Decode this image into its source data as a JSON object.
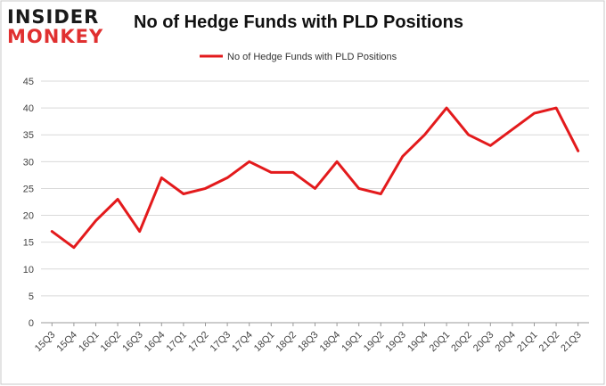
{
  "logo": {
    "line1": "INSIDER",
    "line2": "MONKEY"
  },
  "chart_data": {
    "type": "line",
    "title": "No of Hedge Funds with PLD Positions",
    "xlabel": "",
    "ylabel": "",
    "categories": [
      "15Q3",
      "15Q4",
      "16Q1",
      "16Q2",
      "16Q3",
      "16Q4",
      "17Q1",
      "17Q2",
      "17Q3",
      "17Q4",
      "18Q1",
      "18Q2",
      "18Q3",
      "18Q4",
      "19Q1",
      "19Q2",
      "19Q3",
      "19Q4",
      "20Q1",
      "20Q2",
      "20Q3",
      "20Q4",
      "21Q1",
      "21Q2",
      "21Q3"
    ],
    "series": [
      {
        "name": "No of Hedge Funds with PLD Positions",
        "color": "#e31a1c",
        "values": [
          17,
          14,
          19,
          23,
          17,
          27,
          24,
          25,
          27,
          30,
          28,
          28,
          25,
          30,
          25,
          24,
          31,
          35,
          40,
          35,
          33,
          36,
          39,
          40,
          32
        ]
      }
    ],
    "ylim": [
      0,
      45
    ],
    "yticks": [
      0,
      5,
      10,
      15,
      20,
      25,
      30,
      35,
      40,
      45
    ],
    "grid": true,
    "legend_position": "top-center"
  }
}
